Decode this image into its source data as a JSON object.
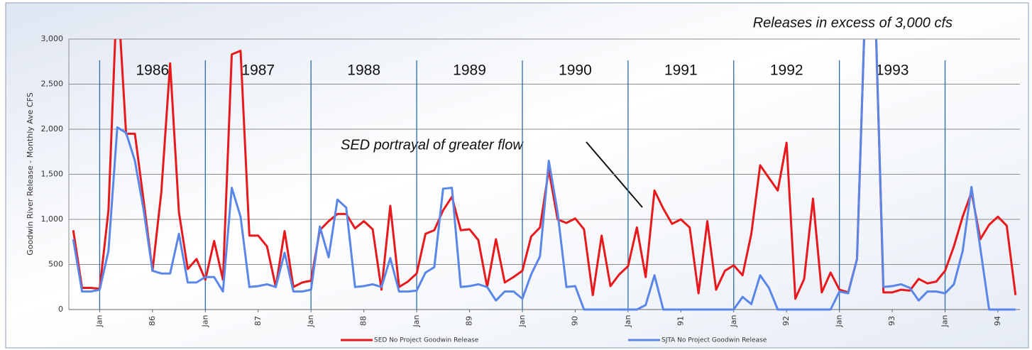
{
  "chart_data": {
    "type": "line",
    "y_label": "Goodwin River Release - Monthly Ave CFS",
    "annotations": [
      "Releases in excess of 3,000 cfs",
      "SED portrayal of greater flow"
    ],
    "year_labels": [
      "1986",
      "1987",
      "1988",
      "1989",
      "1990",
      "1991",
      "1992",
      "1993"
    ],
    "categories": [
      null,
      null,
      null,
      "Jan",
      null,
      null,
      null,
      null,
      null,
      "86",
      null,
      null,
      null,
      null,
      null,
      "Jan",
      null,
      null,
      null,
      null,
      null,
      "87",
      null,
      null,
      null,
      null,
      null,
      "Jan",
      null,
      null,
      null,
      null,
      null,
      "88",
      null,
      null,
      null,
      null,
      null,
      "Jan",
      null,
      null,
      null,
      null,
      null,
      "89",
      null,
      null,
      null,
      null,
      null,
      "Jan",
      null,
      null,
      null,
      null,
      null,
      "90",
      null,
      null,
      null,
      null,
      null,
      "Jan",
      null,
      null,
      null,
      null,
      null,
      "91",
      null,
      null,
      null,
      null,
      null,
      "Jan",
      null,
      null,
      null,
      null,
      null,
      "92",
      null,
      null,
      null,
      null,
      null,
      "Jan",
      null,
      null,
      null,
      null,
      null,
      "93",
      null,
      null,
      null,
      null,
      null,
      "Jan",
      null,
      null,
      null,
      null,
      null,
      "94",
      null,
      null
    ],
    "series": [
      {
        "name": "SED No Project Goodwin Release",
        "color": "#e8191c",
        "values": [
          880,
          240,
          240,
          230,
          1100,
          3600,
          1950,
          1950,
          1200,
          430,
          1300,
          2730,
          1080,
          450,
          560,
          330,
          760,
          330,
          2830,
          2870,
          820,
          820,
          700,
          250,
          870,
          250,
          300,
          320,
          880,
          980,
          1060,
          1060,
          900,
          980,
          890,
          220,
          1150,
          250,
          310,
          400,
          840,
          880,
          1100,
          1250,
          880,
          890,
          770,
          250,
          780,
          300,
          360,
          430,
          810,
          910,
          1550,
          1000,
          960,
          1010,
          890,
          160,
          820,
          260,
          390,
          480,
          910,
          360,
          1320,
          1120,
          950,
          1000,
          910,
          180,
          980,
          220,
          430,
          490,
          380,
          840,
          1600,
          1460,
          1320,
          1850,
          120,
          340,
          1230,
          190,
          410,
          220,
          190,
          560,
          3600,
          3600,
          190,
          190,
          220,
          210,
          340,
          290,
          310,
          430,
          700,
          1030,
          1300,
          780,
          940,
          1030,
          930,
          160
        ]
      },
      {
        "name": "SJTA No Project Goodwin Release",
        "color": "#5a86e8",
        "values": [
          780,
          200,
          200,
          220,
          650,
          2020,
          1960,
          1650,
          1100,
          430,
          400,
          400,
          840,
          300,
          300,
          360,
          360,
          200,
          1350,
          1030,
          250,
          260,
          280,
          250,
          630,
          200,
          200,
          220,
          920,
          580,
          1220,
          1130,
          250,
          260,
          280,
          250,
          570,
          200,
          200,
          210,
          410,
          470,
          1340,
          1350,
          250,
          260,
          280,
          250,
          100,
          200,
          200,
          120,
          390,
          590,
          1650,
          1080,
          250,
          260,
          0,
          0,
          0,
          0,
          0,
          0,
          0,
          50,
          380,
          0,
          0,
          0,
          0,
          0,
          0,
          0,
          0,
          0,
          140,
          60,
          380,
          240,
          0,
          0,
          0,
          0,
          0,
          0,
          0,
          200,
          180,
          560,
          3600,
          3600,
          250,
          260,
          280,
          240,
          100,
          200,
          200,
          180,
          280,
          650,
          1360,
          680,
          0,
          0,
          0,
          0
        ]
      }
    ],
    "ylim": [
      0,
      3000
    ],
    "yticks": [
      0,
      500,
      {
        "value": 1000,
        "label": "1,000"
      },
      {
        "value": 1500,
        "label": "1,500"
      },
      {
        "value": 2000,
        "label": "2,000"
      },
      {
        "value": 2500,
        "label": "2,500"
      },
      {
        "value": 3000,
        "label": "3,000"
      }
    ],
    "grid": true
  }
}
